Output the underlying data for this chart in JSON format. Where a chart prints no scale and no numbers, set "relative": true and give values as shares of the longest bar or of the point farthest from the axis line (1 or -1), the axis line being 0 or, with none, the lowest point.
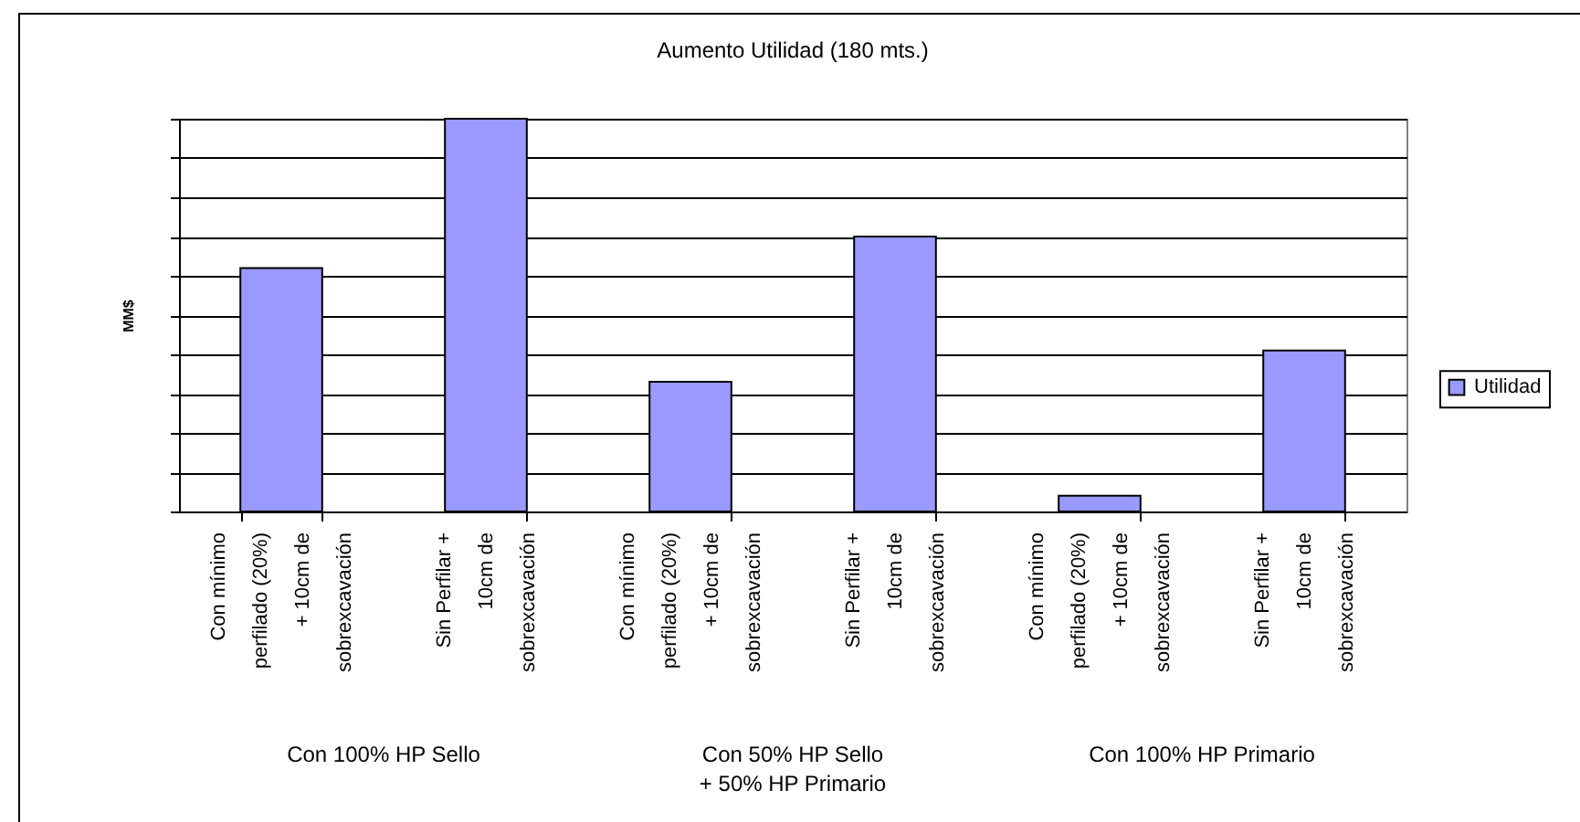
{
  "chart_data": {
    "type": "bar",
    "title": "Aumento Utilidad (180 mts.)",
    "ylabel": "MM$",
    "categories": [
      "Con mínimo perfilado (20%) + 10cm de sobrexcavación",
      "Sin Perfilar + 10cm de sobrexcavación",
      "Con mínimo perfilado (20%) + 10cm de sobrexcavación",
      "Sin Perfilar + 10cm de sobrexcavación",
      "Con mínimo perfilado (20%) + 10cm de sobrexcavación",
      "Sin Perfilar + 10cm de sobrexcavación"
    ],
    "series": [
      {
        "name": "Utilidad",
        "color": "#9999ff",
        "values": [
          0.62,
          1,
          0.33,
          0.7,
          0.04,
          0.41
        ]
      }
    ],
    "relative": true,
    "grid": "y",
    "legend": "right",
    "annotations": [
      "Con 100% HP Sello",
      "Con 50% HP Sello + 50% HP Primario",
      "Con 100% HP Primario"
    ]
  }
}
